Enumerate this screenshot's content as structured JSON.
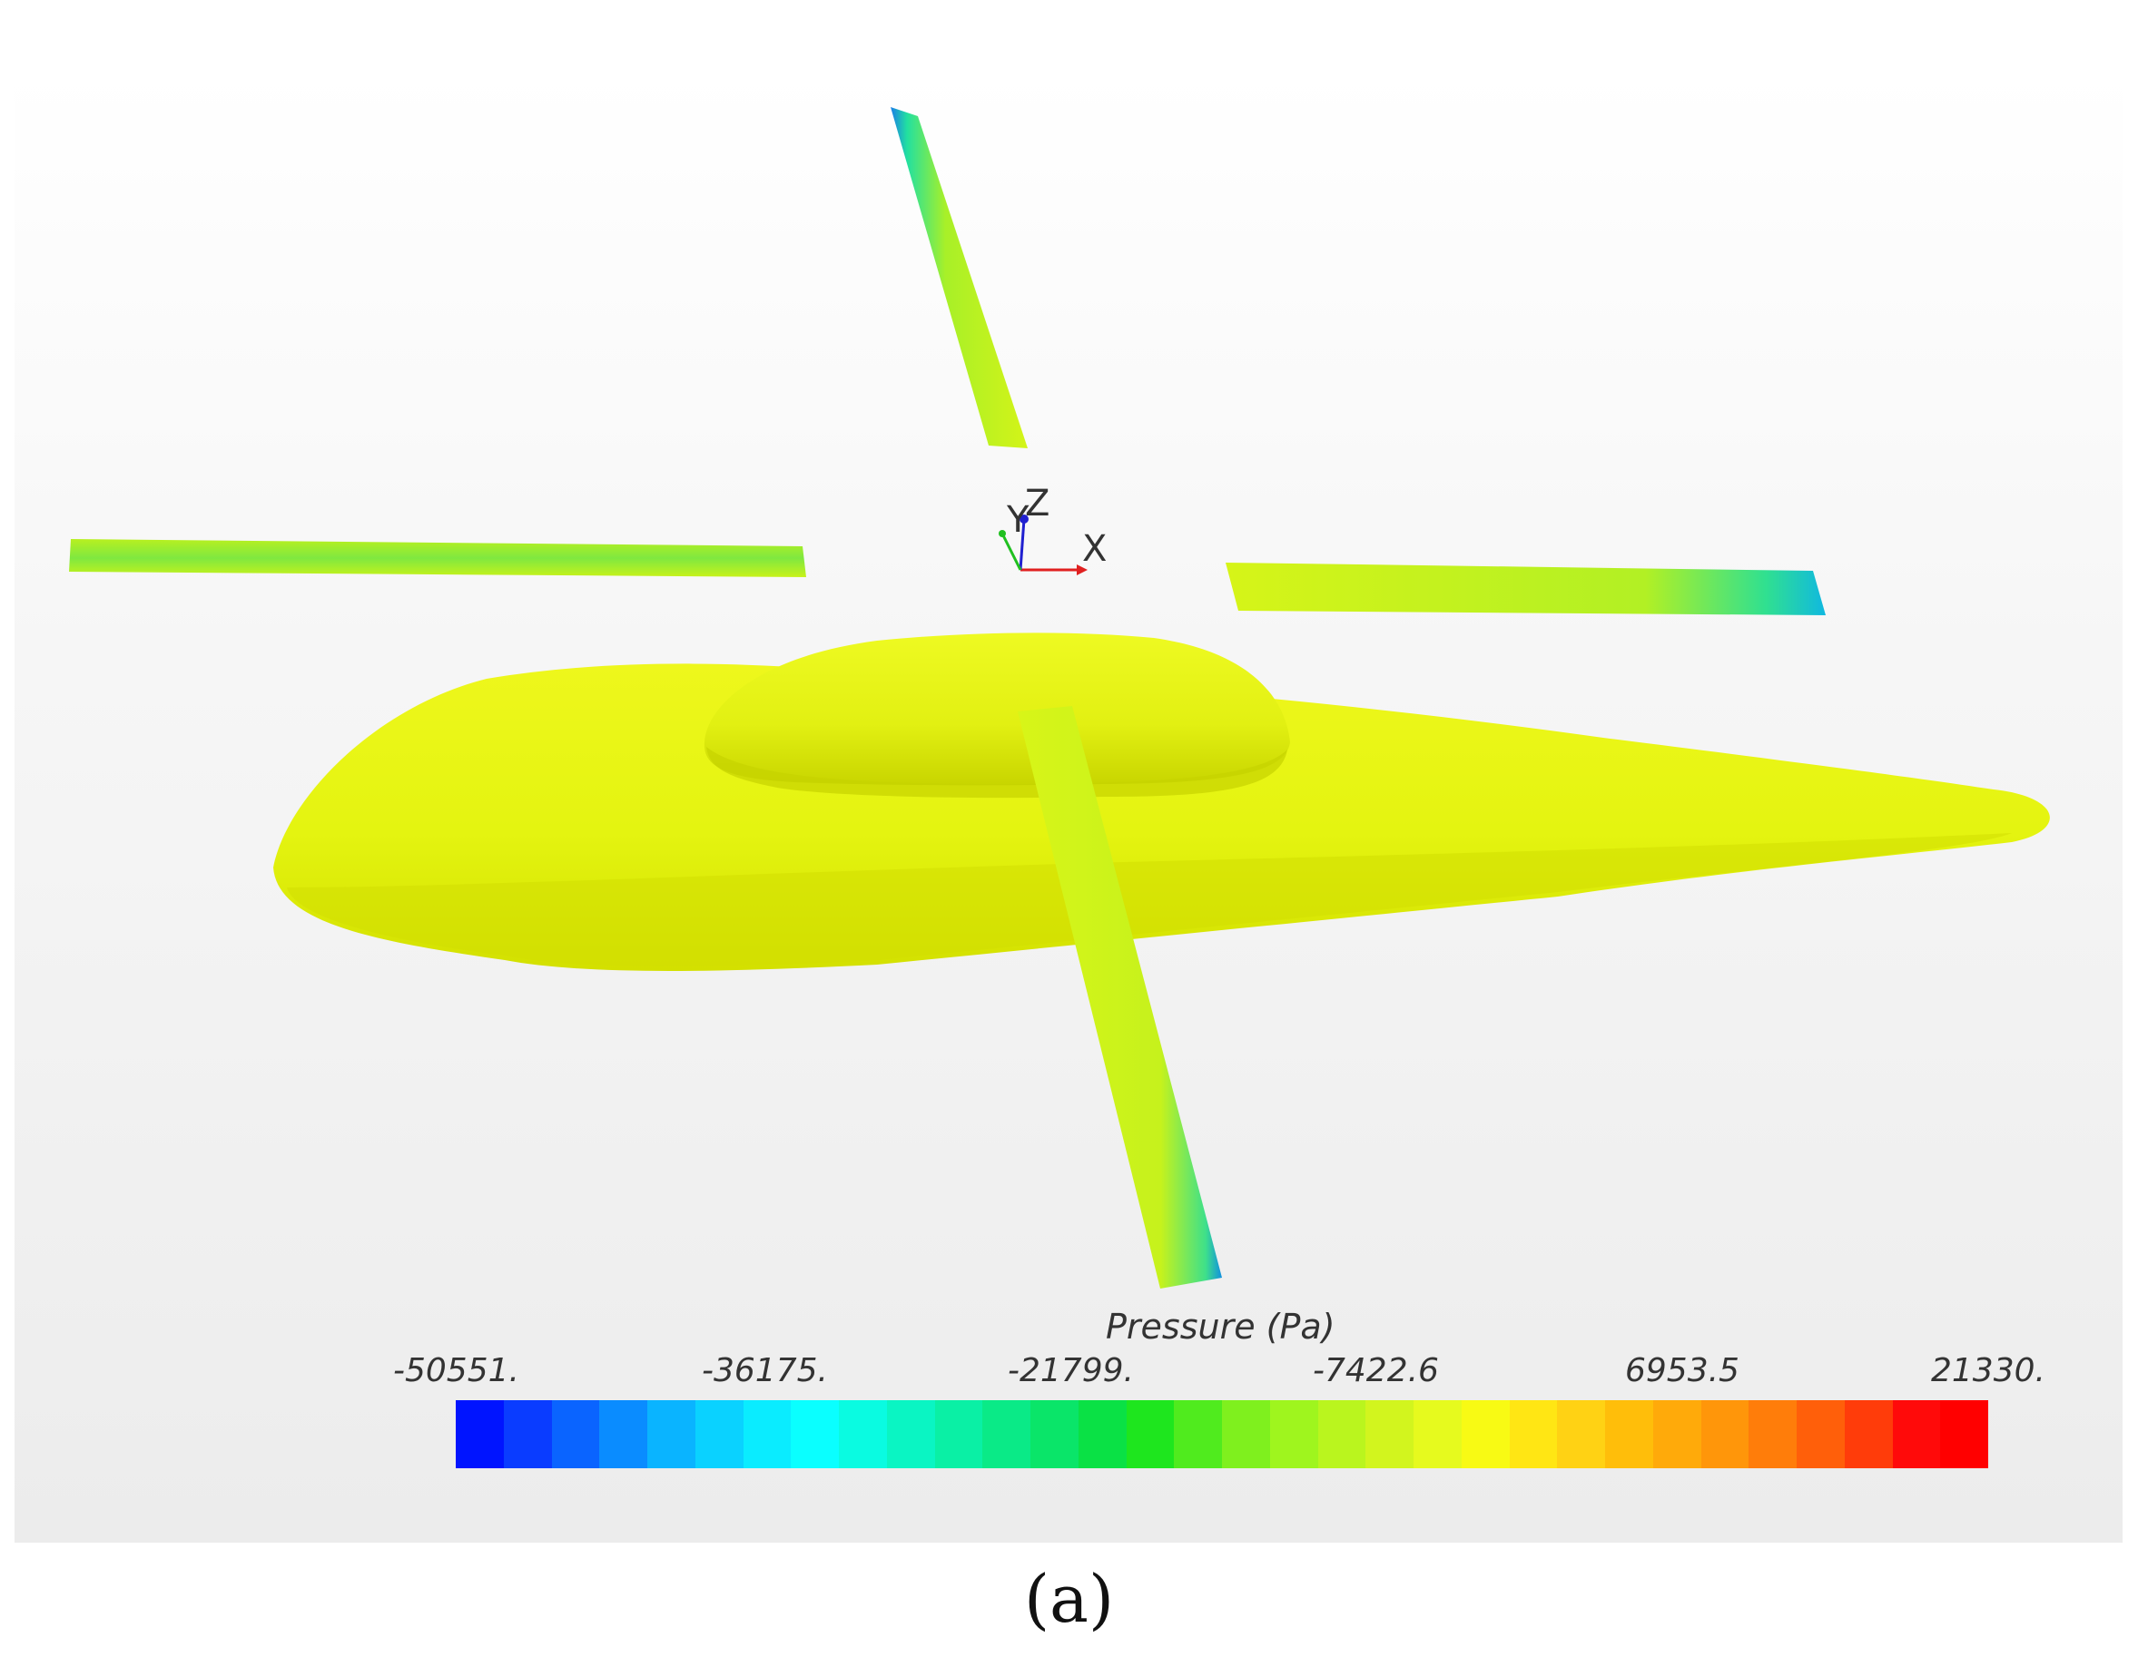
{
  "viewer": {
    "colors": {
      "body": "#e4f410",
      "body_shade": "#cfdc05",
      "blade_base": "#c9f01a",
      "blade_low": "#1ee08a",
      "blade_min": "#1560e8",
      "axis_x": "#e02020",
      "axis_y": "#20c020",
      "axis_z": "#2020d0"
    },
    "triad": {
      "y_label": "Y",
      "z_label": "Z",
      "x_label": "X"
    }
  },
  "legend": {
    "title": "Pressure (Pa)",
    "ticks": [
      "-50551.",
      "-36175.",
      "-21799.",
      "-7422.6",
      "6953.5",
      "21330."
    ],
    "colormap": [
      "#0014ff",
      "#0a3cff",
      "#0a64ff",
      "#0a8cff",
      "#0ab4ff",
      "#0ad2ff",
      "#0aecff",
      "#0affff",
      "#0afbe1",
      "#0af5c3",
      "#0af0a5",
      "#0aea87",
      "#0ae569",
      "#0ae145",
      "#1ee61e",
      "#50eb1e",
      "#7ff01e",
      "#9ff51e",
      "#baf51e",
      "#d2f51e",
      "#e6fa1e",
      "#f8fa14",
      "#ffe614",
      "#ffd214",
      "#ffbe0a",
      "#ffaa0a",
      "#ff960a",
      "#ff7d0a",
      "#ff5f0a",
      "#ff3c0a",
      "#ff0a0a",
      "#ff0000"
    ]
  },
  "caption": "(a)"
}
